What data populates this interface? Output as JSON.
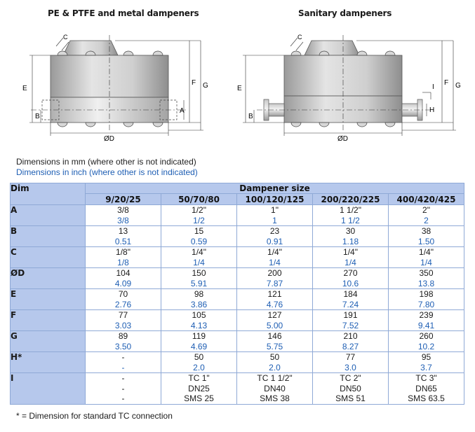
{
  "titles": {
    "left": "PE & PTFE and metal dampeners",
    "right": "Sanitary dampeners"
  },
  "drawing_labels": {
    "c": "C",
    "e": "E",
    "b": "B",
    "a": "A",
    "f": "F",
    "g": "G",
    "od": "ØD",
    "h": "H",
    "i": "I"
  },
  "notes": {
    "mm": "Dimensions in mm (where other is not indicated)",
    "inch": "Dimensions in inch (where other is not indicated)"
  },
  "table": {
    "dim_header": "Dim",
    "size_header": "Dampener size",
    "sizes": [
      "9/20/25",
      "50/70/80",
      "100/120/125",
      "200/220/225",
      "400/420/425"
    ],
    "rows": [
      {
        "label": "A",
        "mm": [
          "3/8",
          "1/2\"",
          "1\"",
          "1 1/2\"",
          "2\""
        ],
        "inch": [
          "3/8",
          "1/2",
          "1",
          "1 1/2",
          "2"
        ]
      },
      {
        "label": "B",
        "mm": [
          "13",
          "15",
          "23",
          "30",
          "38"
        ],
        "inch": [
          "0.51",
          "0.59",
          "0.91",
          "1.18",
          "1.50"
        ]
      },
      {
        "label": "C",
        "mm": [
          "1/8\"",
          "1/4\"",
          "1/4\"",
          "1/4\"",
          "1/4\""
        ],
        "inch": [
          "1/8",
          "1/4",
          "1/4",
          "1/4",
          "1/4"
        ]
      },
      {
        "label": "ØD",
        "mm": [
          "104",
          "150",
          "200",
          "270",
          "350"
        ],
        "inch": [
          "4.09",
          "5.91",
          "7.87",
          "10.6",
          "13.8"
        ]
      },
      {
        "label": "E",
        "mm": [
          "70",
          "98",
          "121",
          "184",
          "198"
        ],
        "inch": [
          "2.76",
          "3.86",
          "4.76",
          "7.24",
          "7.80"
        ]
      },
      {
        "label": "F",
        "mm": [
          "77",
          "105",
          "127",
          "191",
          "239"
        ],
        "inch": [
          "3.03",
          "4.13",
          "5.00",
          "7.52",
          "9.41"
        ]
      },
      {
        "label": "G",
        "mm": [
          "89",
          "119",
          "146",
          "210",
          "260"
        ],
        "inch": [
          "3.50",
          "4.69",
          "5.75",
          "8.27",
          "10.2"
        ]
      },
      {
        "label": "H*",
        "mm": [
          "-",
          "50",
          "50",
          "77",
          "95"
        ],
        "inch": [
          "-",
          "2.0",
          "2.0",
          "3.0",
          "3.7"
        ]
      },
      {
        "label": "I",
        "lines": [
          [
            "-",
            "TC 1\"",
            "TC 1 1/2\"",
            "TC 2\"",
            "TC 3\""
          ],
          [
            "-",
            "DN25",
            "DN40",
            "DN50",
            "DN65"
          ],
          [
            "-",
            "SMS 25",
            "SMS 38",
            "SMS 51",
            "SMS 63.5"
          ]
        ]
      }
    ]
  },
  "footnote": "* = Dimension for standard TC connection",
  "colors": {
    "header_bg": "#b6c8ec",
    "inch_text": "#1f5fb4",
    "border": "#8fa9d6"
  }
}
